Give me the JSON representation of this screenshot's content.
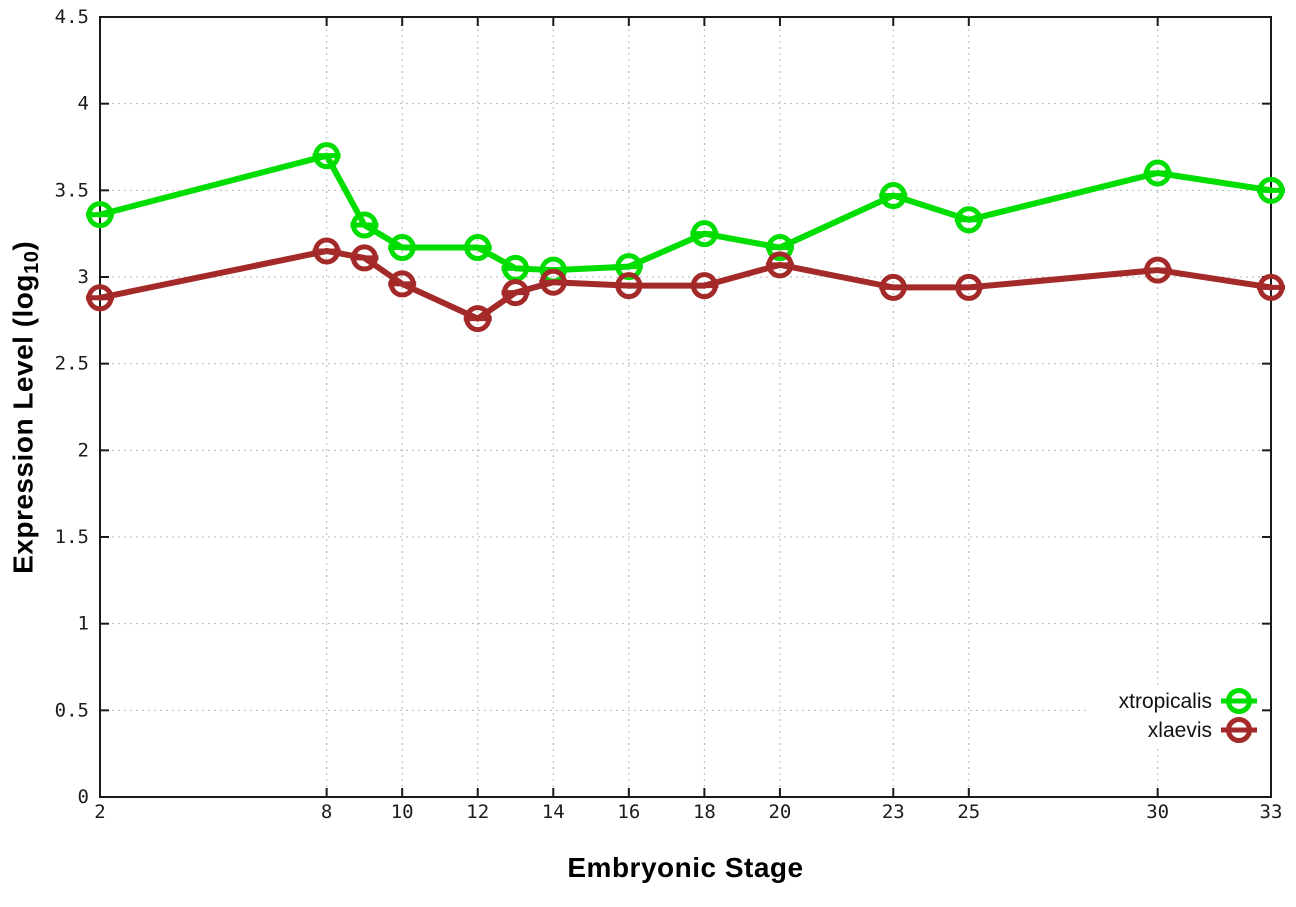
{
  "chart_data": {
    "type": "line",
    "title": "",
    "xlabel": "Embryonic Stage",
    "ylabel": {
      "prefix": "Expression Level (log",
      "subscript": "10",
      "suffix": ")"
    },
    "x": [
      2,
      8,
      9,
      10,
      12,
      13,
      14,
      16,
      18,
      20,
      23,
      25,
      30,
      33
    ],
    "xlim": [
      2,
      33
    ],
    "ylim": [
      0,
      4.5
    ],
    "x_ticks": {
      "values": [
        2,
        8,
        10,
        12,
        14,
        16,
        18,
        20,
        23,
        25,
        30,
        33
      ],
      "labels": [
        "2",
        "8",
        "10",
        "12",
        "14",
        "16",
        "18",
        "20",
        "23",
        "25",
        "30",
        "33"
      ]
    },
    "y_ticks": {
      "values": [
        0,
        0.5,
        1,
        1.5,
        2,
        2.5,
        3,
        3.5,
        4,
        4.5
      ],
      "labels": [
        "0",
        "0.5",
        "1",
        "1.5",
        "2",
        "2.5",
        "3",
        "3.5",
        "4",
        "4.5"
      ]
    },
    "grid": "dotted",
    "legend_position": "bottom-right",
    "series": [
      {
        "name": "xtropicalis",
        "color": "#00dd00",
        "values": [
          3.36,
          3.7,
          3.3,
          3.17,
          3.17,
          3.05,
          3.04,
          3.06,
          3.25,
          3.17,
          3.47,
          3.33,
          3.6,
          3.5
        ]
      },
      {
        "name": "xlaevis",
        "color": "#a42a2a",
        "values": [
          2.88,
          3.15,
          3.11,
          2.96,
          2.76,
          2.91,
          2.97,
          2.95,
          2.95,
          3.07,
          2.94,
          2.94,
          3.04,
          2.94
        ]
      }
    ],
    "style": {
      "border_color": "#1a1a1a",
      "grid_color": "#b8b8b8",
      "tick_label_color": "#1c1c1c",
      "legend_text_color": "#111111",
      "marker": "open-circle-with-error-dash"
    }
  }
}
